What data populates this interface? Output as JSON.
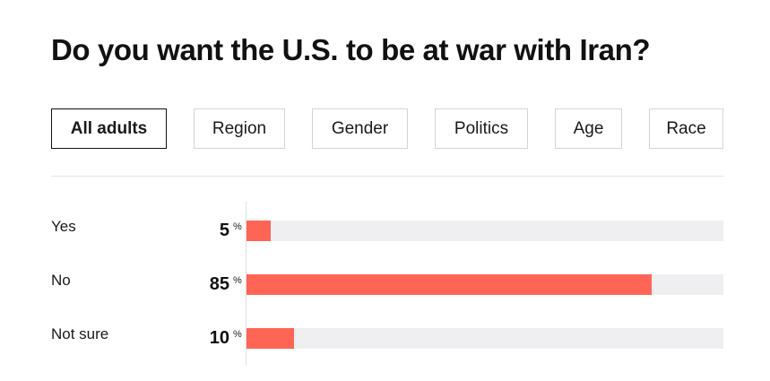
{
  "chart_data": {
    "type": "bar",
    "title": "Do you want the U.S. to be at war with Iran?",
    "categories": [
      "Yes",
      "No",
      "Not sure"
    ],
    "values": [
      5,
      85,
      10
    ],
    "unit": "%",
    "ylim": [
      0,
      100
    ],
    "grid": false,
    "bar_color": "#ff6555",
    "track_color": "#efeff2"
  },
  "tabs": [
    {
      "label": "All adults",
      "active": true
    },
    {
      "label": "Region",
      "active": false
    },
    {
      "label": "Gender",
      "active": false
    },
    {
      "label": "Politics",
      "active": false
    },
    {
      "label": "Age",
      "active": false
    },
    {
      "label": "Race",
      "active": false
    }
  ]
}
